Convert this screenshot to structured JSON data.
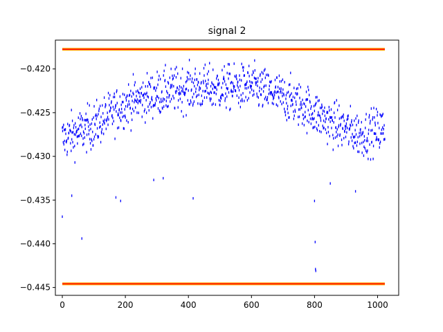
{
  "chart_data": {
    "type": "scatter",
    "title": "signal 2",
    "xlabel": "",
    "ylabel": "",
    "xlim": [
      -22,
      1067
    ],
    "ylim": [
      -0.4459,
      -0.4167
    ],
    "x_ticks": [
      0,
      200,
      400,
      600,
      800,
      1000
    ],
    "x_tick_labels": [
      "0",
      "200",
      "400",
      "600",
      "800",
      "1000"
    ],
    "y_ticks": [
      -0.42,
      -0.425,
      -0.43,
      -0.435,
      -0.44,
      -0.445
    ],
    "y_tick_labels": [
      "−0.420",
      "−0.425",
      "−0.430",
      "−0.435",
      "−0.440",
      "−0.445"
    ],
    "grid": false,
    "legend": "none",
    "point_color": "#0000ff",
    "marker": "vertical-tick",
    "series": [
      {
        "values_description": "signal samples",
        "n_points": 1024,
        "trend_x": [
          0,
          100,
          200,
          300,
          400,
          500,
          600,
          700,
          780,
          850,
          950,
          1023
        ],
        "trend_y": [
          -0.428,
          -0.4265,
          -0.424,
          -0.4228,
          -0.4222,
          -0.4222,
          -0.422,
          -0.4232,
          -0.4245,
          -0.4262,
          -0.4275,
          -0.4268
        ],
        "spread": 0.0018,
        "outliers": [
          {
            "x": 0,
            "y": -0.4369
          },
          {
            "x": 30,
            "y": -0.4345
          },
          {
            "x": 62,
            "y": -0.4394
          },
          {
            "x": 170,
            "y": -0.4347
          },
          {
            "x": 185,
            "y": -0.4351
          },
          {
            "x": 415,
            "y": -0.4348
          },
          {
            "x": 800,
            "y": -0.4351
          },
          {
            "x": 802,
            "y": -0.4398
          },
          {
            "x": 803,
            "y": -0.4429
          },
          {
            "x": 804,
            "y": -0.4431
          },
          {
            "x": 930,
            "y": -0.434
          },
          {
            "x": 850,
            "y": -0.4331
          },
          {
            "x": 320,
            "y": -0.4325
          },
          {
            "x": 290,
            "y": -0.4327
          }
        ]
      }
    ],
    "hlines": [
      {
        "y": -0.41775,
        "color": "#ffa500",
        "width": 4
      },
      {
        "y": -0.41775,
        "color": "#ff0000",
        "width": 1.5
      },
      {
        "y": -0.44458,
        "color": "#ffa500",
        "width": 4
      },
      {
        "y": -0.44458,
        "color": "#ff0000",
        "width": 1.5
      }
    ]
  }
}
